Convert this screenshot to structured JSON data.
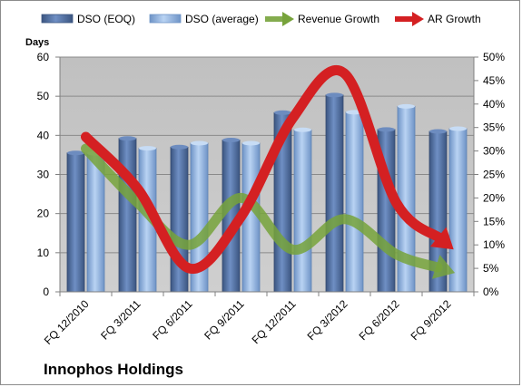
{
  "chart_data": {
    "type": "bar",
    "title": "Innophos Holdings",
    "categories": [
      "FQ 12/2010",
      "FQ 3/2011",
      "FQ 6/2011",
      "FQ 9/2011",
      "FQ 12/2011",
      "FQ 3/2012",
      "FQ 6/2012",
      "FQ 9/2012"
    ],
    "ylabel": "Days",
    "ylim": [
      0,
      60
    ],
    "yticks": [
      "0",
      "10",
      "20",
      "30",
      "40",
      "50",
      "60"
    ],
    "y2lim": [
      0,
      50
    ],
    "y2ticks": [
      "0%",
      "5%",
      "10%",
      "15%",
      "20%",
      "25%",
      "30%",
      "35%",
      "40%",
      "45%",
      "50%"
    ],
    "grid": true,
    "legend_position": "top",
    "series": [
      {
        "name": "DSO (EOQ)",
        "type": "bar",
        "axis": "left",
        "color": "#4f6fa5",
        "values": [
          35.5,
          39.2,
          37.0,
          38.8,
          45.8,
          50.3,
          41.5,
          41.0
        ]
      },
      {
        "name": "DSO (average)",
        "type": "bar",
        "axis": "left",
        "color": "#8fb4e3",
        "values": [
          35.4,
          36.7,
          38.0,
          38.0,
          41.4,
          45.9,
          47.4,
          41.7
        ]
      },
      {
        "name": "Revenue Growth",
        "type": "line",
        "axis": "right",
        "unit": "%",
        "color": "#77a33b",
        "values": [
          30.5,
          19.0,
          10.0,
          20.0,
          9.0,
          15.5,
          8.0,
          4.5
        ]
      },
      {
        "name": "AR Growth",
        "type": "line",
        "axis": "right",
        "unit": "%",
        "color": "#d42022",
        "values": [
          33.0,
          22.0,
          5.0,
          16.0,
          37.0,
          46.5,
          19.0,
          10.0
        ]
      }
    ]
  }
}
